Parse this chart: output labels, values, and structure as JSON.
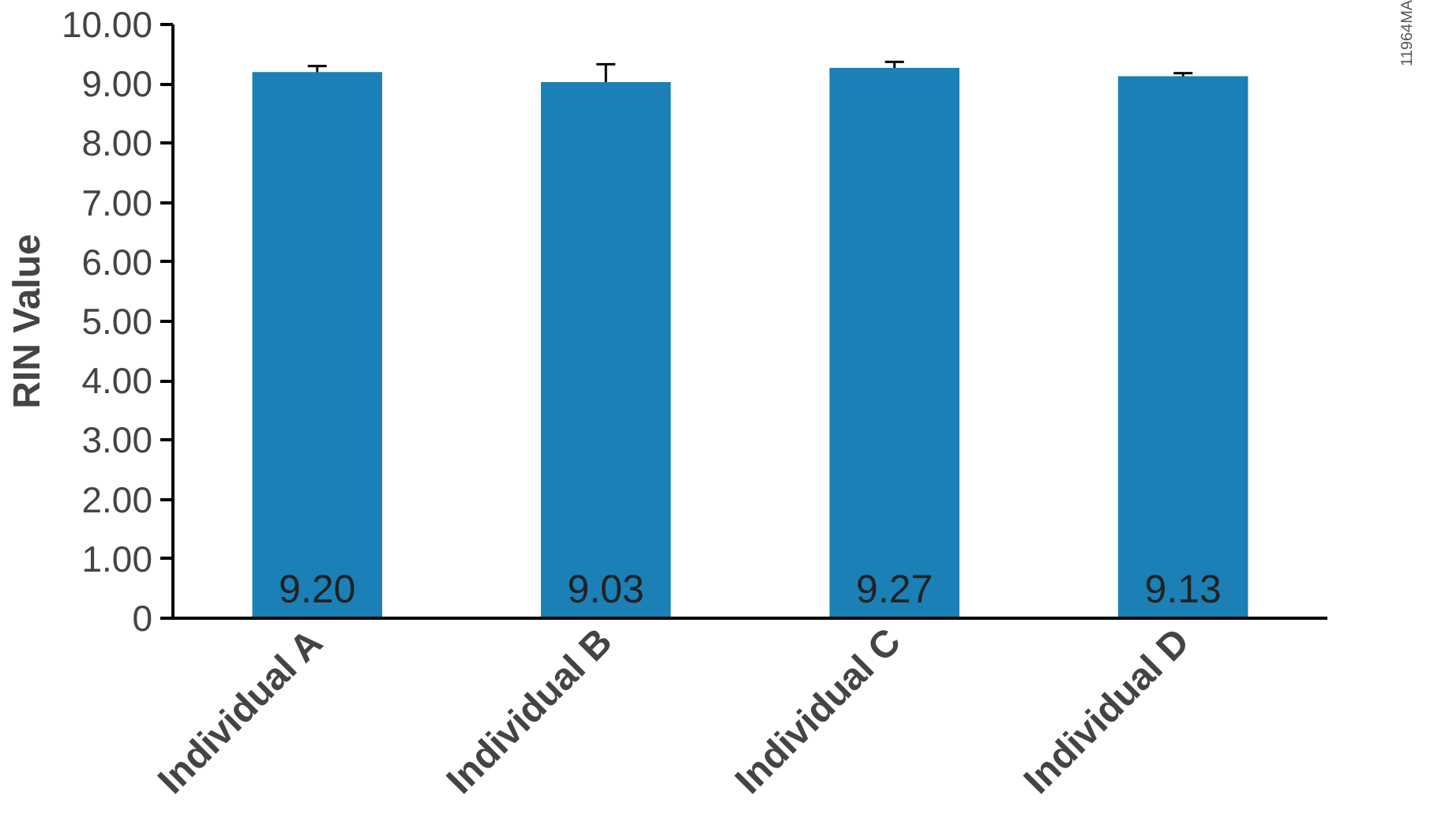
{
  "chart_data": {
    "type": "bar",
    "ylabel": "RIN Value",
    "categories": [
      "Individual A",
      "Individual B",
      "Individual C",
      "Individual D"
    ],
    "values": [
      9.2,
      9.03,
      9.27,
      9.13
    ],
    "errors": [
      0.1,
      0.3,
      0.1,
      0.05
    ],
    "value_labels": [
      "9.20",
      "9.03",
      "9.27",
      "9.13"
    ],
    "color": "#1b80b5",
    "ylim": [
      0,
      10
    ],
    "yticks": [
      {
        "value": 0,
        "label": "0"
      },
      {
        "value": 1,
        "label": "1.00"
      },
      {
        "value": 2,
        "label": "2.00"
      },
      {
        "value": 3,
        "label": "3.00"
      },
      {
        "value": 4,
        "label": "4.00"
      },
      {
        "value": 5,
        "label": "5.00"
      },
      {
        "value": 6,
        "label": "6.00"
      },
      {
        "value": 7,
        "label": "7.00"
      },
      {
        "value": 8,
        "label": "8.00"
      },
      {
        "value": 9,
        "label": "9.00"
      },
      {
        "value": 10,
        "label": "10.00"
      }
    ],
    "grid": false,
    "annotations": [
      "11964MA"
    ]
  }
}
